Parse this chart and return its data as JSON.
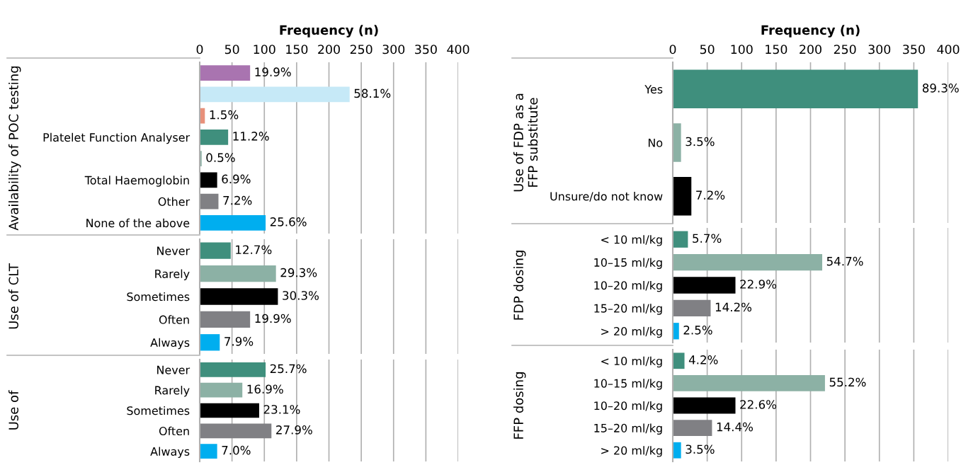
{
  "chart_data": [
    {
      "type": "bar",
      "orientation": "horizontal",
      "xlabel": "Frequency (n)",
      "ylabel": "Availability of POC testing",
      "categories": [
        null,
        null,
        null,
        "Platelet Function Analyser",
        null,
        "Total Haemoglobin",
        "Other",
        "None of the above"
      ],
      "values": [
        78,
        232,
        8,
        44,
        3,
        27,
        29,
        102
      ],
      "colors": [
        "#a974b0",
        "#c6e9f7",
        "#e8907a",
        "#3f8f7d",
        "#8cb1a5",
        "#000000",
        "#808084",
        "#00aeef"
      ],
      "annotations": [
        {
          "text": "19.9%",
          "x": 78
        },
        {
          "text": "58.1%",
          "x": 232
        },
        {
          "text": "1.5%",
          "x": 8
        },
        {
          "text": "11.2%",
          "x": 44
        },
        {
          "text": "0.5%",
          "x": 3
        },
        {
          "text": "6.9%",
          "x": 27
        },
        {
          "text": "7.2%",
          "x": 29
        },
        {
          "text": "25.6%",
          "x": 102
        }
      ],
      "xlim": [
        0,
        400
      ],
      "xticks": [
        0,
        50,
        100,
        150,
        200,
        250,
        300,
        350,
        400
      ],
      "grid": "x"
    },
    {
      "type": "bar",
      "orientation": "horizontal",
      "ylabel": "Use of CLT",
      "categories": [
        "Never",
        "Rarely",
        "Sometimes",
        "Often",
        "Always"
      ],
      "values": [
        48,
        118,
        121,
        78,
        31
      ],
      "colors": [
        "#3f8f7d",
        "#8cb1a5",
        "#000000",
        "#808084",
        "#00aeef"
      ],
      "annotations": [
        {
          "text": "12.7%",
          "x": 48
        },
        {
          "text": "29.3%",
          "x": 118
        },
        {
          "text": "30.3%",
          "x": 121
        },
        {
          "text": "19.9%",
          "x": 78
        },
        {
          "text": "7.9%",
          "x": 31
        }
      ],
      "xlim": [
        0,
        400
      ],
      "xticks": [
        0,
        50,
        100,
        150,
        200,
        250,
        300,
        350,
        400
      ],
      "tick_labels": "y",
      "grid": "x"
    },
    {
      "type": "bar",
      "orientation": "horizontal",
      "ylabel": "Use of",
      "categories": [
        "Never",
        "Rarely",
        "Sometimes",
        "Often",
        "Always"
      ],
      "values": [
        102,
        66,
        92,
        111,
        27
      ],
      "colors": [
        "#3f8f7d",
        "#8cb1a5",
        "#000000",
        "#808084",
        "#00aeef"
      ],
      "annotations": [
        {
          "text": "25.7%",
          "x": 102
        },
        {
          "text": "16.9%",
          "x": 66
        },
        {
          "text": "23.1%",
          "x": 92
        },
        {
          "text": "27.9%",
          "x": 111
        },
        {
          "text": "7.0%",
          "x": 27
        }
      ],
      "xlim": [
        0,
        400
      ],
      "xticks": [
        0,
        50,
        100,
        150,
        200,
        250,
        300,
        350,
        400
      ],
      "tick_labels": "y",
      "grid": "x"
    },
    {
      "type": "bar",
      "orientation": "horizontal",
      "xlabel": "Frequency (n)",
      "ylabel": "Use of FDP as a FFP substitute",
      "categories": [
        "Yes",
        "No",
        "Unsure/do not know"
      ],
      "values": [
        356,
        12,
        27
      ],
      "colors": [
        "#3f8f7d",
        "#8cb1a5",
        "#000000"
      ],
      "annotations": [
        {
          "text": "89.3%",
          "x": 356
        },
        {
          "text": "3.5%",
          "x": 12
        },
        {
          "text": "7.2%",
          "x": 27
        }
      ],
      "xlim": [
        0,
        400
      ],
      "xticks": [
        0,
        50,
        100,
        150,
        200,
        250,
        300,
        350,
        400
      ],
      "grid": "x"
    },
    {
      "type": "bar",
      "orientation": "horizontal",
      "ylabel": "FDP dosing",
      "categories": [
        "< 10 ml/kg",
        "10–15 ml/kg",
        "10–20 ml/kg",
        "15–20 ml/kg",
        "> 20 ml/kg"
      ],
      "values": [
        22,
        217,
        91,
        55,
        9
      ],
      "colors": [
        "#3f8f7d",
        "#8cb1a5",
        "#000000",
        "#808084",
        "#00aeef"
      ],
      "annotations": [
        {
          "text": "5.7%",
          "x": 22
        },
        {
          "text": "54.7%",
          "x": 217
        },
        {
          "text": "22.9%",
          "x": 91
        },
        {
          "text": "14.2%",
          "x": 55
        },
        {
          "text": "2.5%",
          "x": 9
        }
      ],
      "xlim": [
        0,
        400
      ],
      "xticks": [
        0,
        50,
        100,
        150,
        200,
        250,
        300,
        350,
        400
      ],
      "tick_labels": "y",
      "grid": "x"
    },
    {
      "type": "bar",
      "orientation": "horizontal",
      "ylabel": "FFP dosing",
      "categories": [
        "< 10 ml/kg",
        "10–15 ml/kg",
        "10–20 ml/kg",
        "15–20 ml/kg",
        "> 20 ml/kg"
      ],
      "values": [
        17,
        221,
        91,
        57,
        12
      ],
      "colors": [
        "#3f8f7d",
        "#8cb1a5",
        "#000000",
        "#808084",
        "#00aeef"
      ],
      "annotations": [
        {
          "text": "4.2%",
          "x": 17
        },
        {
          "text": "55.2%",
          "x": 221
        },
        {
          "text": "22.6%",
          "x": 91
        },
        {
          "text": "14.4%",
          "x": 57
        },
        {
          "text": "3.5%",
          "x": 12
        }
      ],
      "xlim": [
        0,
        400
      ],
      "xticks": [
        0,
        50,
        100,
        150,
        200,
        250,
        300,
        350,
        400
      ],
      "tick_labels": "y",
      "grid": "x"
    }
  ]
}
